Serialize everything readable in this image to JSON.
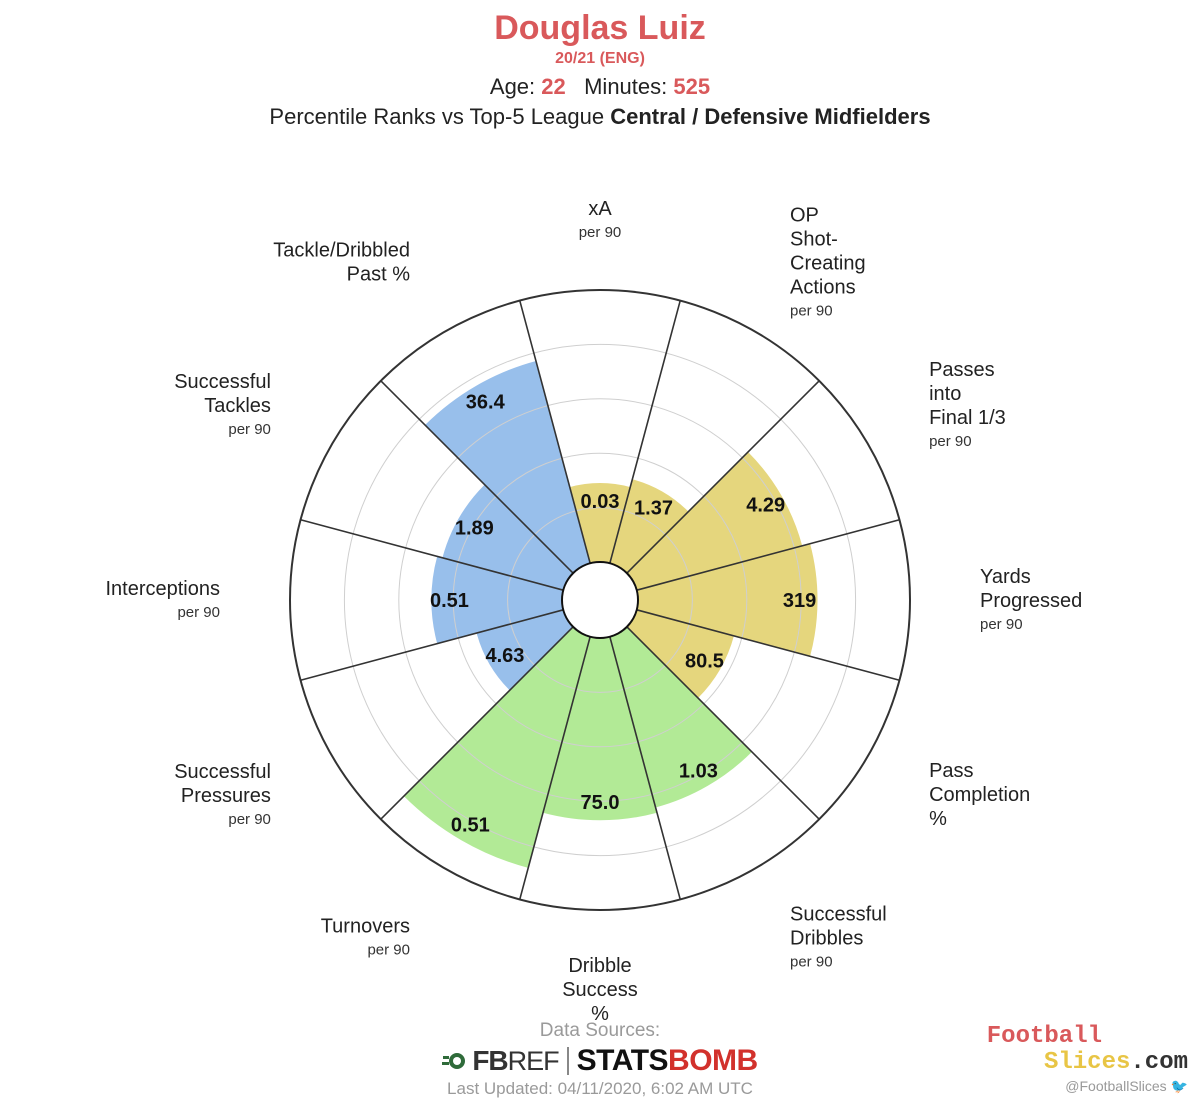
{
  "header": {
    "player_name": "Douglas Luiz",
    "season": "20/21 (ENG)",
    "age_label": "Age:",
    "age_value": "22",
    "minutes_label": "Minutes:",
    "minutes_value": "525",
    "comparison_prefix": "Percentile Ranks vs Top-5 League",
    "comparison_group": "Central / Defensive Midfielders"
  },
  "chart_data": {
    "type": "polar-bar",
    "max_percentile": 100,
    "rings": [
      20,
      40,
      60,
      80
    ],
    "colors": {
      "attacking": "#e5d67d",
      "possession": "#b2ea96",
      "defending": "#98bfeb",
      "outline": "#333333",
      "grid": "#cfcfcf"
    },
    "segments": [
      {
        "label": "xA",
        "sub": "per 90",
        "value_label": "0.03",
        "percentile": 29,
        "group": "attacking"
      },
      {
        "label": "OP\nShot-\nCreating\nActions",
        "sub": "per 90",
        "value_label": "1.37",
        "percentile": 32,
        "group": "attacking"
      },
      {
        "label": "Passes\ninto\nFinal 1/3",
        "sub": "per 90",
        "value_label": "4.29",
        "percentile": 63,
        "group": "attacking"
      },
      {
        "label": "Yards\nProgressed",
        "sub": "per 90",
        "value_label": "319",
        "percentile": 66,
        "group": "attacking"
      },
      {
        "label": "Pass\nCompletion\n%",
        "sub": "",
        "value_label": "80.5",
        "percentile": 37,
        "group": "attacking"
      },
      {
        "label": "Successful\nDribbles",
        "sub": "per 90",
        "value_label": "1.03",
        "percentile": 65,
        "group": "possession"
      },
      {
        "label": "Dribble\nSuccess\n%",
        "sub": "",
        "value_label": "75.0",
        "percentile": 67,
        "group": "possession"
      },
      {
        "label": "Turnovers",
        "sub": "per 90",
        "value_label": "0.51",
        "percentile": 88,
        "group": "possession"
      },
      {
        "label": "Successful\nPressures",
        "sub": "per 90",
        "value_label": "4.63",
        "percentile": 33,
        "group": "defending"
      },
      {
        "label": "Interceptions",
        "sub": "per 90",
        "value_label": "0.51",
        "percentile": 48,
        "group": "defending"
      },
      {
        "label": "Successful\nTackles",
        "sub": "per 90",
        "value_label": "1.89",
        "percentile": 46,
        "group": "defending"
      },
      {
        "label": "Tackle/Dribbled\nPast %",
        "sub": "",
        "value_label": "36.4",
        "percentile": 77,
        "group": "defending"
      }
    ]
  },
  "footer": {
    "sources_label": "Data Sources:",
    "fbref_label": "FB",
    "fbref_suffix": "REF",
    "statsbomb_a": "STATS",
    "statsbomb_b": "BOMB",
    "last_updated": "Last Updated: 04/11/2020, 6:02 AM UTC"
  },
  "brand": {
    "line1": "Football",
    "line2a": "Slices",
    "line2b": ".com",
    "twitter": "@FootballSlices"
  }
}
